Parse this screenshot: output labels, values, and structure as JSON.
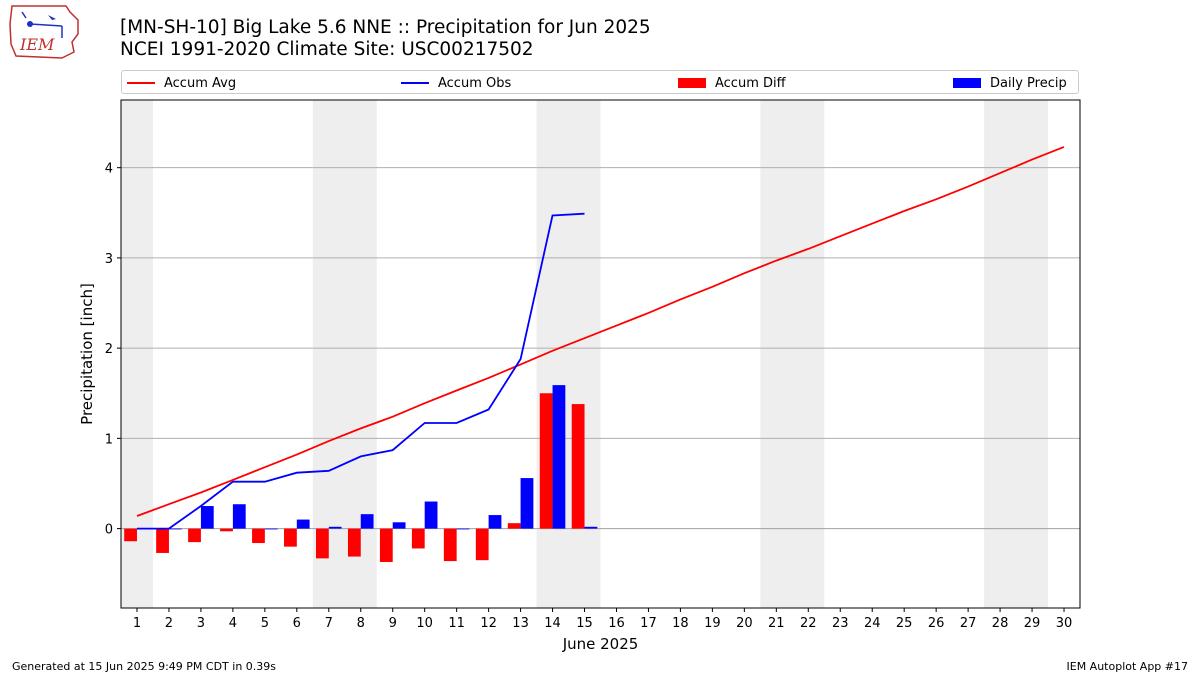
{
  "header": {
    "title_line1": "[MN-SH-10] Big Lake 5.6 NNE :: Precipitation for Jun 2025",
    "title_line2": "NCEI 1991-2020 Climate Site: USC00217502"
  },
  "logo": {
    "text": "IEM",
    "icon": "iem-logo-icon"
  },
  "footer": {
    "generated": "Generated at 15 Jun 2025 9:49 PM CDT in 0.39s",
    "app": "IEM Autoplot App #17"
  },
  "chart_data": {
    "type": "bar",
    "xlabel": "June 2025",
    "ylabel": "Precipitation [inch]",
    "xlim": [
      0.5,
      30.5
    ],
    "ylim": [
      -0.88,
      4.75
    ],
    "x_ticks": [
      1,
      2,
      3,
      4,
      5,
      6,
      7,
      8,
      9,
      10,
      11,
      12,
      13,
      14,
      15,
      16,
      17,
      18,
      19,
      20,
      21,
      22,
      23,
      24,
      25,
      26,
      27,
      28,
      29,
      30
    ],
    "y_ticks": [
      0,
      1,
      2,
      3,
      4
    ],
    "grid": "horizontal",
    "legend_position": "top",
    "weekend_shading": [
      [
        0.5,
        1.5
      ],
      [
        6.5,
        8.5
      ],
      [
        13.5,
        15.5
      ],
      [
        20.5,
        22.5
      ],
      [
        27.5,
        29.5
      ]
    ],
    "series": [
      {
        "name": "Accum Avg",
        "kind": "line",
        "color": "#ff0000",
        "x": [
          1,
          2,
          3,
          4,
          5,
          6,
          7,
          8,
          9,
          10,
          11,
          12,
          13,
          14,
          15,
          16,
          17,
          18,
          19,
          20,
          21,
          22,
          23,
          24,
          25,
          26,
          27,
          28,
          29,
          30
        ],
        "values": [
          0.14,
          0.27,
          0.4,
          0.54,
          0.68,
          0.82,
          0.97,
          1.11,
          1.24,
          1.39,
          1.53,
          1.67,
          1.82,
          1.97,
          2.11,
          2.25,
          2.39,
          2.54,
          2.68,
          2.83,
          2.97,
          3.1,
          3.24,
          3.38,
          3.52,
          3.65,
          3.79,
          3.94,
          4.09,
          4.23
        ]
      },
      {
        "name": "Accum Obs",
        "kind": "line",
        "color": "#0000ff",
        "x": [
          1,
          2,
          3,
          4,
          5,
          6,
          7,
          8,
          9,
          10,
          11,
          12,
          13,
          14,
          15
        ],
        "values": [
          0.0,
          0.0,
          0.25,
          0.52,
          0.52,
          0.62,
          0.64,
          0.8,
          0.87,
          1.17,
          1.17,
          1.32,
          1.88,
          3.47,
          3.49
        ]
      },
      {
        "name": "Accum Diff",
        "kind": "bar",
        "color": "#ff0000",
        "x": [
          1,
          2,
          3,
          4,
          5,
          6,
          7,
          8,
          9,
          10,
          11,
          12,
          13,
          14,
          15
        ],
        "values": [
          -0.14,
          -0.27,
          -0.15,
          -0.03,
          -0.16,
          -0.2,
          -0.33,
          -0.31,
          -0.37,
          -0.22,
          -0.36,
          -0.35,
          0.06,
          1.5,
          1.38
        ]
      },
      {
        "name": "Daily Precip",
        "kind": "bar",
        "color": "#0000ff",
        "x": [
          1,
          2,
          3,
          4,
          5,
          6,
          7,
          8,
          9,
          10,
          11,
          12,
          13,
          14,
          15
        ],
        "values": [
          0.0,
          0.0,
          0.25,
          0.27,
          0.0,
          0.1,
          0.02,
          0.16,
          0.07,
          0.3,
          0.0,
          0.15,
          0.56,
          1.59,
          0.02
        ]
      }
    ]
  }
}
